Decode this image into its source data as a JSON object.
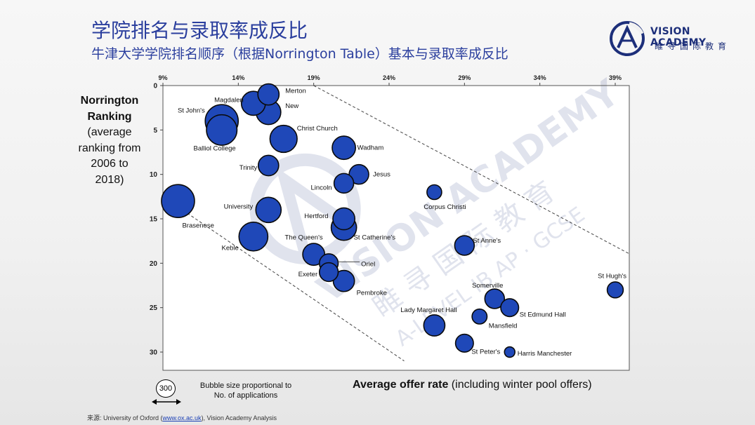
{
  "title": "学院排名与录取率成反比",
  "subtitle": "牛津大学学院排名顺序（根据Norrington Table）基本与录取率成反比",
  "logo": {
    "name": "VISION ACADEMY",
    "sub": "睢寻国际教育"
  },
  "y_axis_label": {
    "bold_line1": "Norrington",
    "bold_line2": "Ranking",
    "line3": "(average",
    "line4": "ranking from",
    "line5": "2006 to",
    "line6": "2018)"
  },
  "x_axis_label": {
    "bold": "Average offer rate",
    "normal": " (including winter pool offers)"
  },
  "legend": {
    "bubble_value": "300",
    "text_line1": "Bubble size proportional to",
    "text_line2": "No. of applications"
  },
  "source": {
    "prefix": "来源:  University of Oxford (",
    "link": "www.ox.ac.uk",
    "suffix": "), Vision Academy Analysis"
  },
  "watermark": {
    "text": "VISION ACADEMY",
    "text_cn": "睢 寻 国 际 教 育",
    "text_small": "A-LEVEL IB AP · GCSE"
  },
  "colors": {
    "title": "#2b3f9e",
    "bubble_fill": "#1f48b8",
    "bubble_stroke": "#0a0a0a",
    "trend_line": "#444444",
    "logo": "#1d2f7a"
  },
  "chart_data": {
    "type": "scatter",
    "bubble": true,
    "xlabel": "Average offer rate (including winter pool offers)",
    "ylabel": "Norrington Ranking (average ranking from 2006 to 2018)",
    "xlim": [
      9,
      40
    ],
    "ylim": [
      0,
      32
    ],
    "y_reversed": true,
    "x_ticks": [
      9,
      14,
      19,
      24,
      29,
      34,
      39
    ],
    "x_tick_labels": [
      "9%",
      "14%",
      "19%",
      "24%",
      "29%",
      "34%",
      "39%"
    ],
    "y_ticks": [
      0,
      5,
      10,
      15,
      20,
      25,
      30
    ],
    "y_tick_labels": [
      "0",
      "5",
      "10",
      "15",
      "20",
      "25",
      "30"
    ],
    "x_axis_position": "top",
    "grid": false,
    "trend_lines": [
      {
        "x": [
          19,
          40
        ],
        "y": [
          0,
          19
        ]
      },
      {
        "x": [
          9,
          25
        ],
        "y": [
          12.5,
          31
        ]
      }
    ],
    "points": [
      {
        "name": "Magdalen",
        "x": 15.0,
        "y": 2.0,
        "size": 900
      },
      {
        "name": "Merton",
        "x": 16.0,
        "y": 1.0,
        "size": 700
      },
      {
        "name": "St John's",
        "x": 12.9,
        "y": 4.0,
        "size": 1700
      },
      {
        "name": "New",
        "x": 16.0,
        "y": 3.0,
        "size": 950
      },
      {
        "name": "Balliol College",
        "x": 12.9,
        "y": 5.0,
        "size": 1450
      },
      {
        "name": "Christ Church",
        "x": 17.0,
        "y": 6.0,
        "size": 1150
      },
      {
        "name": "Wadham",
        "x": 21.0,
        "y": 7.0,
        "size": 850
      },
      {
        "name": "Trinity",
        "x": 16.0,
        "y": 9.0,
        "size": 650
      },
      {
        "name": "Jesus",
        "x": 22.0,
        "y": 10.0,
        "size": 600
      },
      {
        "name": "Lincoln",
        "x": 21.0,
        "y": 11.0,
        "size": 600
      },
      {
        "name": "Corpus Christi",
        "x": 27.0,
        "y": 12.0,
        "size": 340
      },
      {
        "name": "Brasenose",
        "x": 10.0,
        "y": 13.0,
        "size": 1700
      },
      {
        "name": "University",
        "x": 16.0,
        "y": 14.0,
        "size": 1000
      },
      {
        "name": "Hertford",
        "x": 21.0,
        "y": 15.0,
        "size": 750
      },
      {
        "name": "St Catherine's",
        "x": 21.0,
        "y": 16.0,
        "size": 1000
      },
      {
        "name": "Keble",
        "x": 15.0,
        "y": 17.0,
        "size": 1300
      },
      {
        "name": "St Anne's",
        "x": 29.0,
        "y": 18.0,
        "size": 600
      },
      {
        "name": "The Queen's",
        "x": 19.0,
        "y": 19.0,
        "size": 750
      },
      {
        "name": "Oriel",
        "x": 20.0,
        "y": 20.0,
        "size": 550
      },
      {
        "name": "Exeter",
        "x": 20.0,
        "y": 21.0,
        "size": 550
      },
      {
        "name": "Pembroke",
        "x": 21.0,
        "y": 22.0,
        "size": 700
      },
      {
        "name": "St Hugh's",
        "x": 39.0,
        "y": 23.0,
        "size": 400
      },
      {
        "name": "Somerville",
        "x": 31.0,
        "y": 24.0,
        "size": 600
      },
      {
        "name": "St Edmund Hall",
        "x": 32.0,
        "y": 25.0,
        "size": 500
      },
      {
        "name": "Mansfield",
        "x": 30.0,
        "y": 26.0,
        "size": 350
      },
      {
        "name": "Lady Margaret Hall",
        "x": 27.0,
        "y": 27.0,
        "size": 700
      },
      {
        "name": "St Peter's",
        "x": 29.0,
        "y": 29.0,
        "size": 500
      },
      {
        "name": "Harris Manchester",
        "x": 32.0,
        "y": 30.0,
        "size": 170
      }
    ]
  }
}
